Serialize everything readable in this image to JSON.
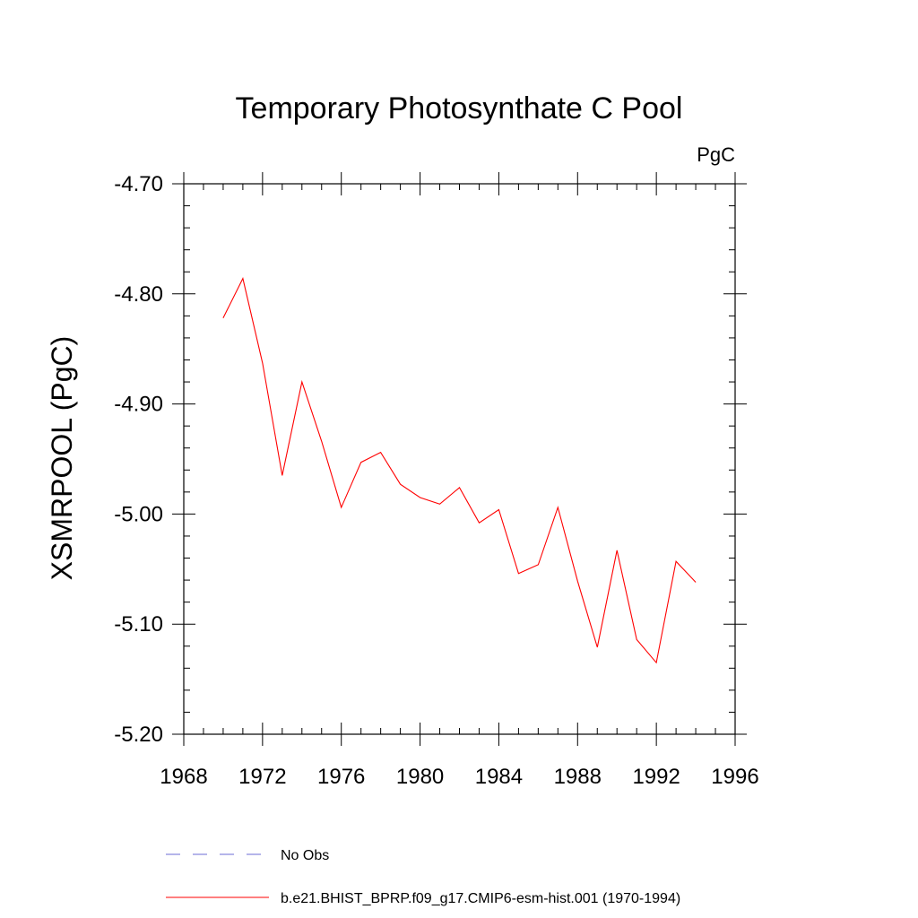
{
  "chart_data": {
    "type": "line",
    "title": "Temporary Photosynthate C Pool",
    "units_label": "PgC",
    "ylabel": "XSMRPOOL  (PgC)",
    "xlabel": "",
    "xlim": [
      1968,
      1996
    ],
    "ylim": [
      -5.2,
      -4.7
    ],
    "x_ticks": [
      1968,
      1972,
      1976,
      1980,
      1984,
      1988,
      1992,
      1996
    ],
    "x_tick_labels": [
      "1968",
      "1972",
      "1976",
      "1980",
      "1984",
      "1988",
      "1992",
      "1996"
    ],
    "y_ticks": [
      -4.7,
      -4.8,
      -4.9,
      -5.0,
      -5.1,
      -5.2
    ],
    "y_tick_labels": [
      "-4.70",
      "-4.80",
      "-4.90",
      "-5.00",
      "-5.10",
      "-5.20"
    ],
    "x_minor_step": 1,
    "y_minor_step": 0.02,
    "grid": false,
    "series": [
      {
        "name": "b.e21.BHIST_BPRP.f09_g17.CMIP6-esm-hist.001 (1970-1994)",
        "color": "#ff0000",
        "style": "solid",
        "x": [
          1970,
          1971,
          1972,
          1973,
          1974,
          1975,
          1976,
          1977,
          1978,
          1979,
          1980,
          1981,
          1982,
          1983,
          1984,
          1985,
          1986,
          1987,
          1988,
          1989,
          1990,
          1991,
          1992,
          1993,
          1994
        ],
        "y": [
          -4.822,
          -4.786,
          -4.863,
          -4.965,
          -4.88,
          -4.934,
          -4.994,
          -4.953,
          -4.944,
          -4.973,
          -4.985,
          -4.991,
          -4.976,
          -5.008,
          -4.996,
          -5.054,
          -5.046,
          -4.994,
          -5.061,
          -5.121,
          -5.033,
          -5.114,
          -5.135,
          -5.043,
          -5.062
        ]
      }
    ],
    "legend": {
      "placement": "bottom",
      "entries": [
        {
          "label": "No Obs",
          "color": "#6b6bd6",
          "style": "dashed"
        },
        {
          "label": "b.e21.BHIST_BPRP.f09_g17.CMIP6-esm-hist.001 (1970-1994)",
          "color": "#ff0000",
          "style": "solid"
        }
      ]
    }
  }
}
